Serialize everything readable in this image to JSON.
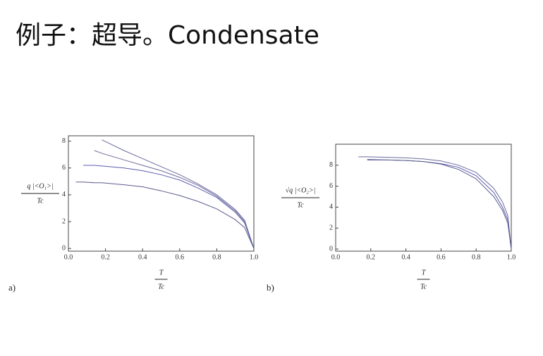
{
  "title": "例子：超导。Condensate",
  "chart_data": [
    {
      "type": "line",
      "panel_label": "a)",
      "ylabel": "q |<O₁>|",
      "ylabel_denominator": "Tc",
      "xlabel": "T",
      "xlabel_denominator": "Tc",
      "x": [
        0.04,
        0.08,
        0.14,
        0.18,
        0.3,
        0.4,
        0.5,
        0.6,
        0.7,
        0.8,
        0.9,
        0.95,
        1.0
      ],
      "series": [
        {
          "color": "#6b6b9c",
          "values": [
            null,
            null,
            null,
            8.1,
            7.3,
            6.7,
            6.1,
            5.5,
            4.8,
            4.0,
            2.9,
            2.1,
            0
          ]
        },
        {
          "color": "#6b6b9c",
          "values": [
            null,
            null,
            7.3,
            7.1,
            6.6,
            6.2,
            5.8,
            5.3,
            4.7,
            3.9,
            2.8,
            2.0,
            0
          ]
        },
        {
          "color": "#5b5bb0",
          "values": [
            null,
            6.2,
            6.2,
            6.15,
            6.0,
            5.8,
            5.5,
            5.1,
            4.5,
            3.8,
            2.7,
            1.9,
            0
          ]
        },
        {
          "color": "#5b5b8c",
          "values": [
            4.95,
            4.95,
            4.9,
            4.9,
            4.75,
            4.6,
            4.3,
            3.95,
            3.5,
            2.95,
            2.15,
            1.55,
            0
          ]
        }
      ],
      "xlim": [
        0,
        1.0
      ],
      "xticks": [
        {
          "value": 0,
          "label": "0.0"
        },
        {
          "value": 0.2,
          "label": "0.2"
        },
        {
          "value": 0.4,
          "label": "0.4"
        },
        {
          "value": 0.6,
          "label": "0.6"
        },
        {
          "value": 0.8,
          "label": "0.8"
        },
        {
          "value": 1.0,
          "label": "1.0"
        }
      ],
      "ylim": [
        -0.2,
        8.4
      ],
      "yticks": [
        0,
        2,
        4,
        6,
        8
      ]
    },
    {
      "type": "line",
      "panel_label": "b)",
      "ylabel": "√q |<O₂>|",
      "ylabel_denominator": "Tc",
      "xlabel": "T",
      "xlabel_denominator": "Tc",
      "x": [
        0.13,
        0.18,
        0.3,
        0.4,
        0.5,
        0.6,
        0.7,
        0.8,
        0.9,
        0.95,
        0.98,
        1.0
      ],
      "series": [
        {
          "color": "#6b6b9c",
          "values": [
            8.8,
            8.8,
            8.75,
            8.7,
            8.6,
            8.4,
            8.0,
            7.3,
            5.8,
            4.5,
            3.2,
            0
          ]
        },
        {
          "color": "#5b5bb0",
          "values": [
            null,
            8.5,
            8.5,
            8.45,
            8.35,
            8.15,
            7.8,
            7.0,
            5.4,
            4.0,
            2.8,
            0
          ]
        },
        {
          "color": "#5b5b8c",
          "values": [
            null,
            8.55,
            8.5,
            8.45,
            8.35,
            8.1,
            7.6,
            6.7,
            5.0,
            3.7,
            2.5,
            0
          ]
        }
      ],
      "xlim": [
        0,
        1.0
      ],
      "xticks": [
        {
          "value": 0,
          "label": "0.0"
        },
        {
          "value": 0.2,
          "label": "0.2"
        },
        {
          "value": 0.4,
          "label": "0.4"
        },
        {
          "value": 0.6,
          "label": "0.6"
        },
        {
          "value": 0.8,
          "label": "0.8"
        },
        {
          "value": 1.0,
          "label": "1.0"
        }
      ],
      "ylim": [
        -0.2,
        10
      ],
      "yticks": [
        0,
        2,
        4,
        6,
        8
      ]
    }
  ]
}
